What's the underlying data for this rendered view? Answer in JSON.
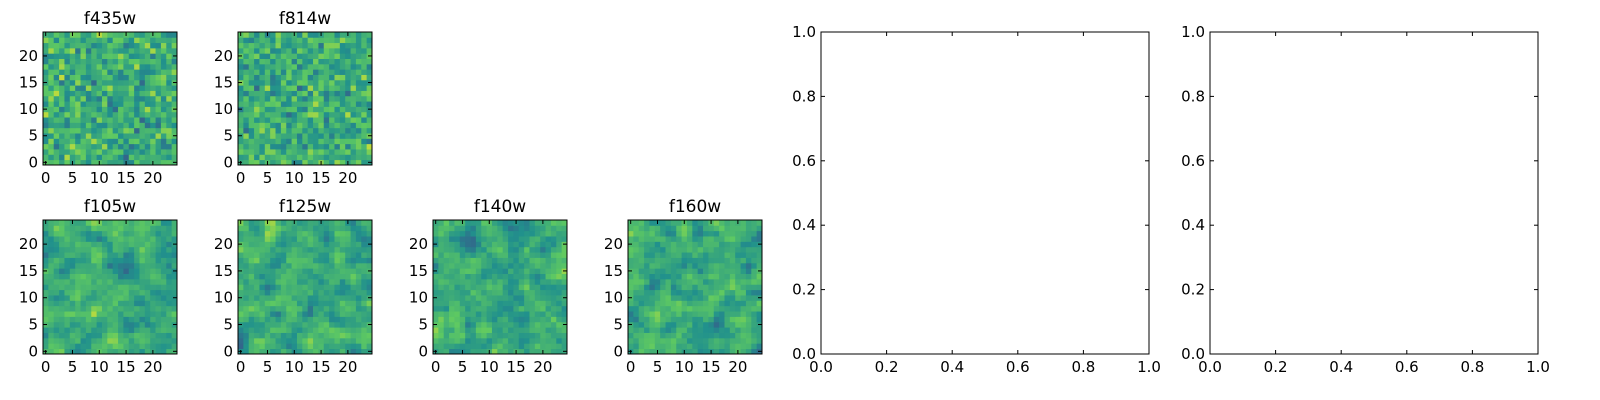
{
  "chart_data": [
    {
      "type": "heatmap",
      "title": "f435w",
      "image_size": [
        25,
        25
      ],
      "xticks": [
        "0",
        "5",
        "10",
        "15",
        "20"
      ],
      "yticks": [
        "0",
        "5",
        "10",
        "15",
        "20"
      ],
      "xlim": [
        -0.5,
        24.5
      ],
      "ylim": [
        -0.5,
        24.5
      ],
      "colormap": "viridis"
    },
    {
      "type": "heatmap",
      "title": "f814w",
      "image_size": [
        25,
        25
      ],
      "xticks": [
        "0",
        "5",
        "10",
        "15",
        "20"
      ],
      "yticks": [
        "0",
        "5",
        "10",
        "15",
        "20"
      ],
      "xlim": [
        -0.5,
        24.5
      ],
      "ylim": [
        -0.5,
        24.5
      ],
      "colormap": "viridis"
    },
    {
      "type": "heatmap",
      "title": "f105w",
      "image_size": [
        25,
        25
      ],
      "xticks": [
        "0",
        "5",
        "10",
        "15",
        "20"
      ],
      "yticks": [
        "0",
        "5",
        "10",
        "15",
        "20"
      ],
      "xlim": [
        -0.5,
        24.5
      ],
      "ylim": [
        -0.5,
        24.5
      ],
      "colormap": "viridis"
    },
    {
      "type": "heatmap",
      "title": "f125w",
      "image_size": [
        25,
        25
      ],
      "xticks": [
        "0",
        "5",
        "10",
        "15",
        "20"
      ],
      "yticks": [
        "0",
        "5",
        "10",
        "15",
        "20"
      ],
      "xlim": [
        -0.5,
        24.5
      ],
      "ylim": [
        -0.5,
        24.5
      ],
      "colormap": "viridis"
    },
    {
      "type": "heatmap",
      "title": "f140w",
      "image_size": [
        25,
        25
      ],
      "xticks": [
        "0",
        "5",
        "10",
        "15",
        "20"
      ],
      "yticks": [
        "0",
        "5",
        "10",
        "15",
        "20"
      ],
      "xlim": [
        -0.5,
        24.5
      ],
      "ylim": [
        -0.5,
        24.5
      ],
      "colormap": "viridis"
    },
    {
      "type": "heatmap",
      "title": "f160w",
      "image_size": [
        25,
        25
      ],
      "xticks": [
        "0",
        "5",
        "10",
        "15",
        "20"
      ],
      "yticks": [
        "0",
        "5",
        "10",
        "15",
        "20"
      ],
      "xlim": [
        -0.5,
        24.5
      ],
      "ylim": [
        -0.5,
        24.5
      ],
      "colormap": "viridis"
    },
    {
      "type": "line",
      "title": "",
      "series": [],
      "xlim": [
        0,
        1
      ],
      "ylim": [
        0,
        1
      ],
      "xticks": [
        "0.0",
        "0.2",
        "0.4",
        "0.6",
        "0.8",
        "1.0"
      ],
      "yticks": [
        "0.0",
        "0.2",
        "0.4",
        "0.6",
        "0.8",
        "1.0"
      ]
    },
    {
      "type": "line",
      "title": "",
      "series": [],
      "xlim": [
        0,
        1
      ],
      "ylim": [
        0,
        1
      ],
      "xticks": [
        "0.0",
        "0.2",
        "0.4",
        "0.6",
        "0.8",
        "1.0"
      ],
      "yticks": [
        "0.0",
        "0.2",
        "0.4",
        "0.6",
        "0.8",
        "1.0"
      ]
    }
  ]
}
